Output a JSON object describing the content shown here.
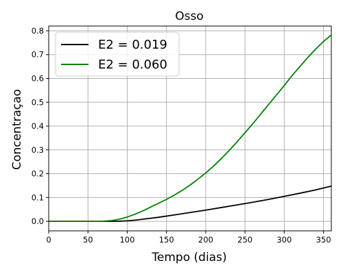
{
  "chart_data": {
    "type": "line",
    "title": "Osso",
    "xlabel": "Tempo (dias)",
    "ylabel": "Concentraçao",
    "xlim": [
      0,
      360
    ],
    "ylim": [
      -0.04,
      0.82
    ],
    "xticks": [
      0,
      50,
      100,
      150,
      200,
      250,
      300,
      350
    ],
    "yticks": [
      0.0,
      0.1,
      0.2,
      0.3,
      0.4,
      0.5,
      0.6,
      0.7,
      0.8
    ],
    "xtick_labels": [
      "0",
      "50",
      "100",
      "150",
      "200",
      "250",
      "300",
      "350"
    ],
    "ytick_labels": [
      "0.0",
      "0.1",
      "0.2",
      "0.3",
      "0.4",
      "0.5",
      "0.6",
      "0.7",
      "0.8"
    ],
    "grid": true,
    "legend_position": "top-left",
    "series": [
      {
        "name": "E2 = 0.019",
        "color": "#000000",
        "x": [
          0,
          50,
          80,
          90,
          100,
          110,
          120,
          140,
          160,
          180,
          200,
          220,
          240,
          260,
          280,
          300,
          320,
          340,
          360
        ],
        "y": [
          0.0,
          0.0,
          0.0,
          0.0005,
          0.002,
          0.005,
          0.009,
          0.017,
          0.027,
          0.037,
          0.047,
          0.058,
          0.069,
          0.08,
          0.092,
          0.105,
          0.118,
          0.132,
          0.148
        ]
      },
      {
        "name": "E2 = 0.060",
        "color": "#008000",
        "x": [
          0,
          50,
          60,
          70,
          80,
          90,
          100,
          110,
          120,
          130,
          140,
          150,
          160,
          170,
          180,
          190,
          200,
          210,
          220,
          230,
          240,
          250,
          260,
          270,
          280,
          290,
          300,
          310,
          320,
          330,
          340,
          350,
          360
        ],
        "y": [
          0.0,
          0.0,
          0.0,
          0.0005,
          0.003,
          0.009,
          0.018,
          0.03,
          0.044,
          0.06,
          0.076,
          0.092,
          0.11,
          0.13,
          0.152,
          0.177,
          0.203,
          0.232,
          0.264,
          0.298,
          0.334,
          0.372,
          0.41,
          0.45,
          0.49,
          0.53,
          0.57,
          0.612,
          0.65,
          0.688,
          0.723,
          0.755,
          0.782
        ]
      }
    ]
  }
}
